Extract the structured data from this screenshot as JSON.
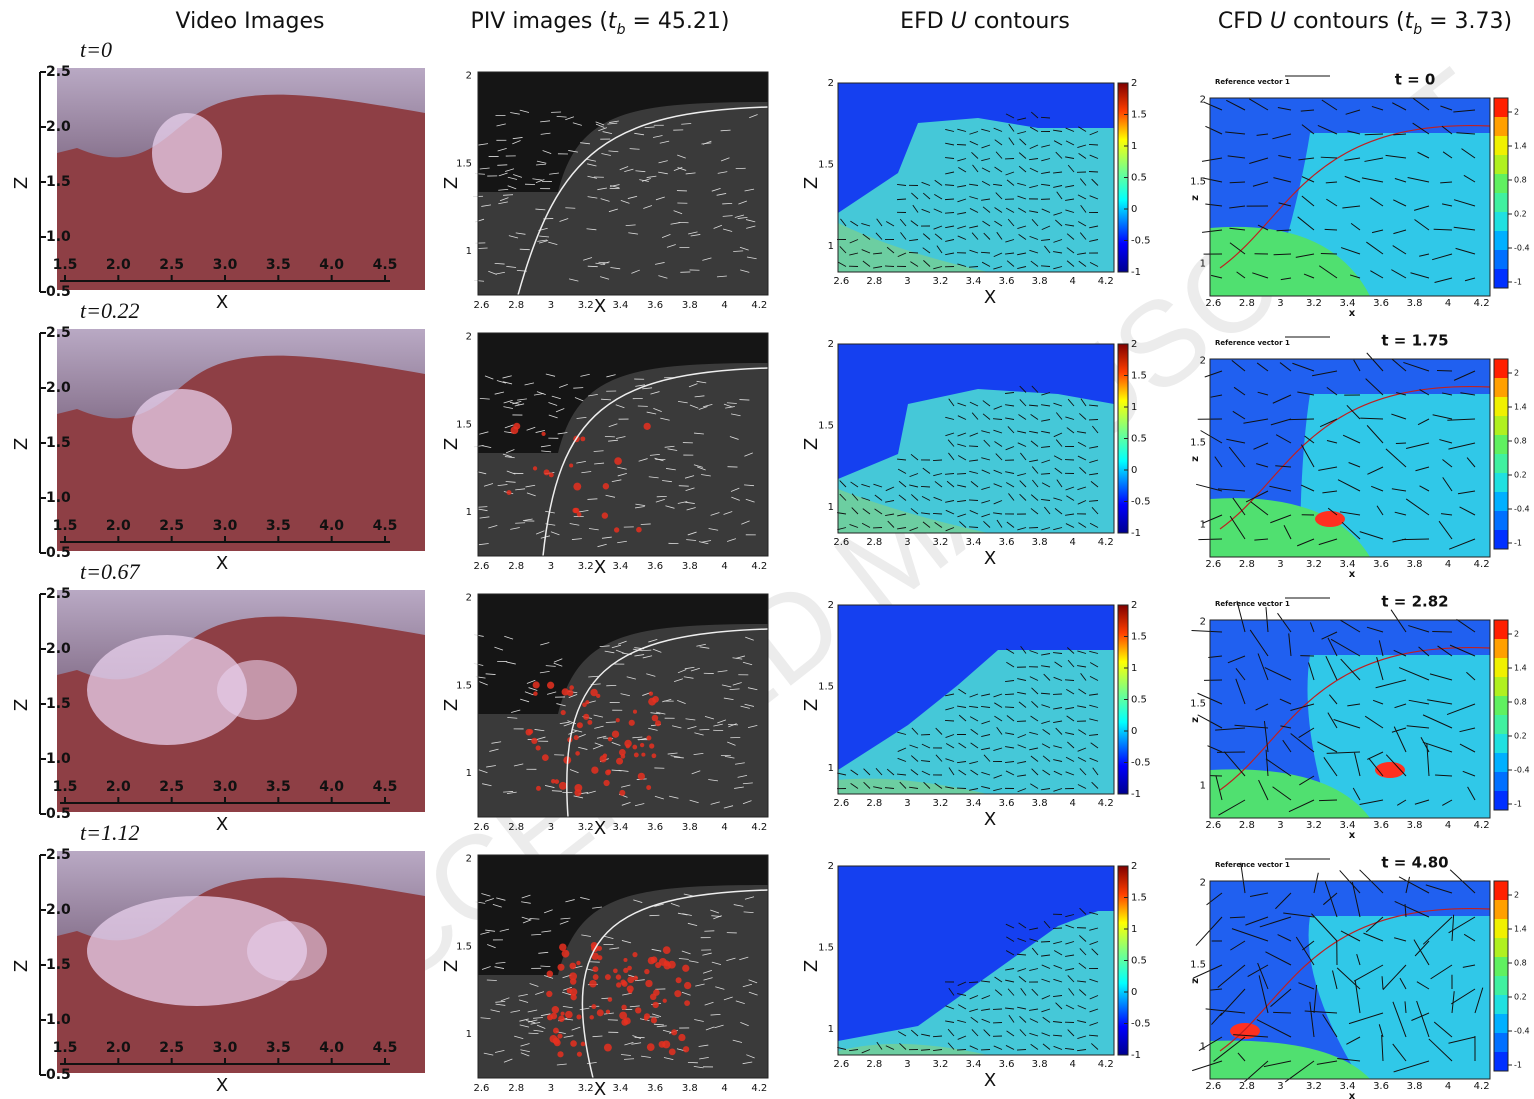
{
  "headers": [
    [
      {
        "t": "Video Images"
      }
    ],
    [
      {
        "t": "PIV images ("
      },
      {
        "t": "t",
        "i": true
      },
      {
        "t": "b",
        "i": true,
        "s": true
      },
      {
        "t": " = 45.21)"
      }
    ],
    [
      {
        "t": "EFD "
      },
      {
        "t": "U",
        "i": true
      },
      {
        "t": " contours"
      }
    ],
    [
      {
        "t": "CFD "
      },
      {
        "t": "U",
        "i": true
      },
      {
        "t": " contours ("
      },
      {
        "t": "t",
        "i": true
      },
      {
        "t": "b",
        "i": true,
        "s": true
      },
      {
        "t": " = 3.73)"
      }
    ]
  ],
  "watermark": "ACCEPTED MANUSCRIPT",
  "video": {
    "time_labels": [
      "t=0",
      "t=0.22",
      "t=0.67",
      "t=1.12"
    ],
    "ylabel": "Z",
    "xlabel": "X",
    "ylim": [
      0.5,
      2.5
    ],
    "yticks": [
      0.5,
      {
        "value": 1,
        "label": "1.0"
      },
      1.5,
      {
        "value": 2,
        "label": "2.0"
      },
      2.5
    ],
    "xlim": [
      1.5,
      4.5
    ],
    "xticks": [
      1.5,
      {
        "value": 2,
        "label": "2.0"
      },
      2.5,
      {
        "value": 3,
        "label": "3.0"
      },
      3.5,
      {
        "value": 4,
        "label": "4.0"
      },
      4.5
    ]
  },
  "piv": {
    "ylabel": "Z",
    "xlabel": "X",
    "ylim": [
      0.75,
      2.02
    ],
    "yticks": [
      1,
      1.5,
      2
    ],
    "xlim": [
      2.58,
      4.25
    ],
    "xticks": [
      2.6,
      2.8,
      3,
      3.2,
      3.4,
      3.6,
      3.8,
      4,
      4.2
    ]
  },
  "efd": {
    "ylabel": "Z",
    "xlabel": "X",
    "ylim": [
      0.84,
      2
    ],
    "yticks": [
      1,
      1.5,
      2
    ],
    "xlim": [
      2.58,
      4.25
    ],
    "xticks": [
      2.6,
      2.8,
      3,
      3.2,
      3.4,
      3.6,
      3.8,
      4,
      4.2
    ],
    "clim": [
      -1,
      2
    ],
    "cticks": [
      -1,
      -0.5,
      0,
      0.5,
      1,
      1.5,
      2
    ]
  },
  "cfd": {
    "titles": [
      "t = 0",
      "t = 1.75",
      "t = 2.82",
      "t = 4.80"
    ],
    "reference": "Reference vector 1",
    "ylabel": "z",
    "xlabel": "x",
    "ylim": [
      0.8,
      2.01
    ],
    "yticks": [
      1,
      1.5,
      2
    ],
    "xlim": [
      2.58,
      4.25
    ],
    "xticks": [
      2.6,
      2.8,
      3,
      3.2,
      3.4,
      3.6,
      3.8,
      4,
      4.2
    ],
    "clim": [
      -1,
      2
    ],
    "cticks": [
      -1,
      -0.4,
      0.2,
      0.8,
      1.4,
      2
    ]
  }
}
